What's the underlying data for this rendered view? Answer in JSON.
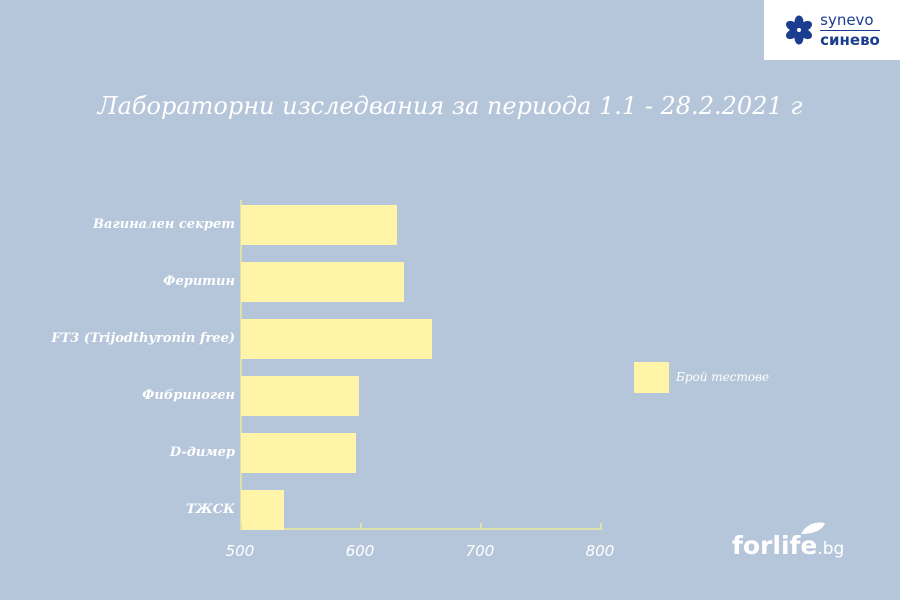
{
  "logo": {
    "line1": "synevo",
    "line2": "синево",
    "icon": "flower-icon",
    "color": "#1b3d8f"
  },
  "title": "Лабораторни изследвания за периода 1.1 - 28.2.2021 г",
  "legend": {
    "label": "Брой тестове",
    "color": "#fff4a8"
  },
  "watermark": {
    "main": "forlife",
    "suffix": ".bg",
    "icon": "leaf-icon"
  },
  "chart_data": {
    "type": "bar",
    "orientation": "horizontal",
    "title": "Лабораторни изследвания за периода 1.1 - 28.2.2021 г",
    "categories": [
      "Вагинален секрет",
      "Феритин",
      "FT3 (Trijodthyronin free)",
      "Фибриноген",
      "D-димер",
      "ТЖСК"
    ],
    "series": [
      {
        "name": "Брой тестове",
        "values": [
          631,
          637,
          660,
          599,
          597,
          537
        ],
        "color": "#fff4a8"
      }
    ],
    "xlabel": "",
    "ylabel": "",
    "xlim": [
      500,
      800
    ],
    "xticks": [
      "500",
      "600",
      "700",
      "800"
    ],
    "grid": false,
    "legend_position": "right",
    "background": "#b5c6da"
  }
}
